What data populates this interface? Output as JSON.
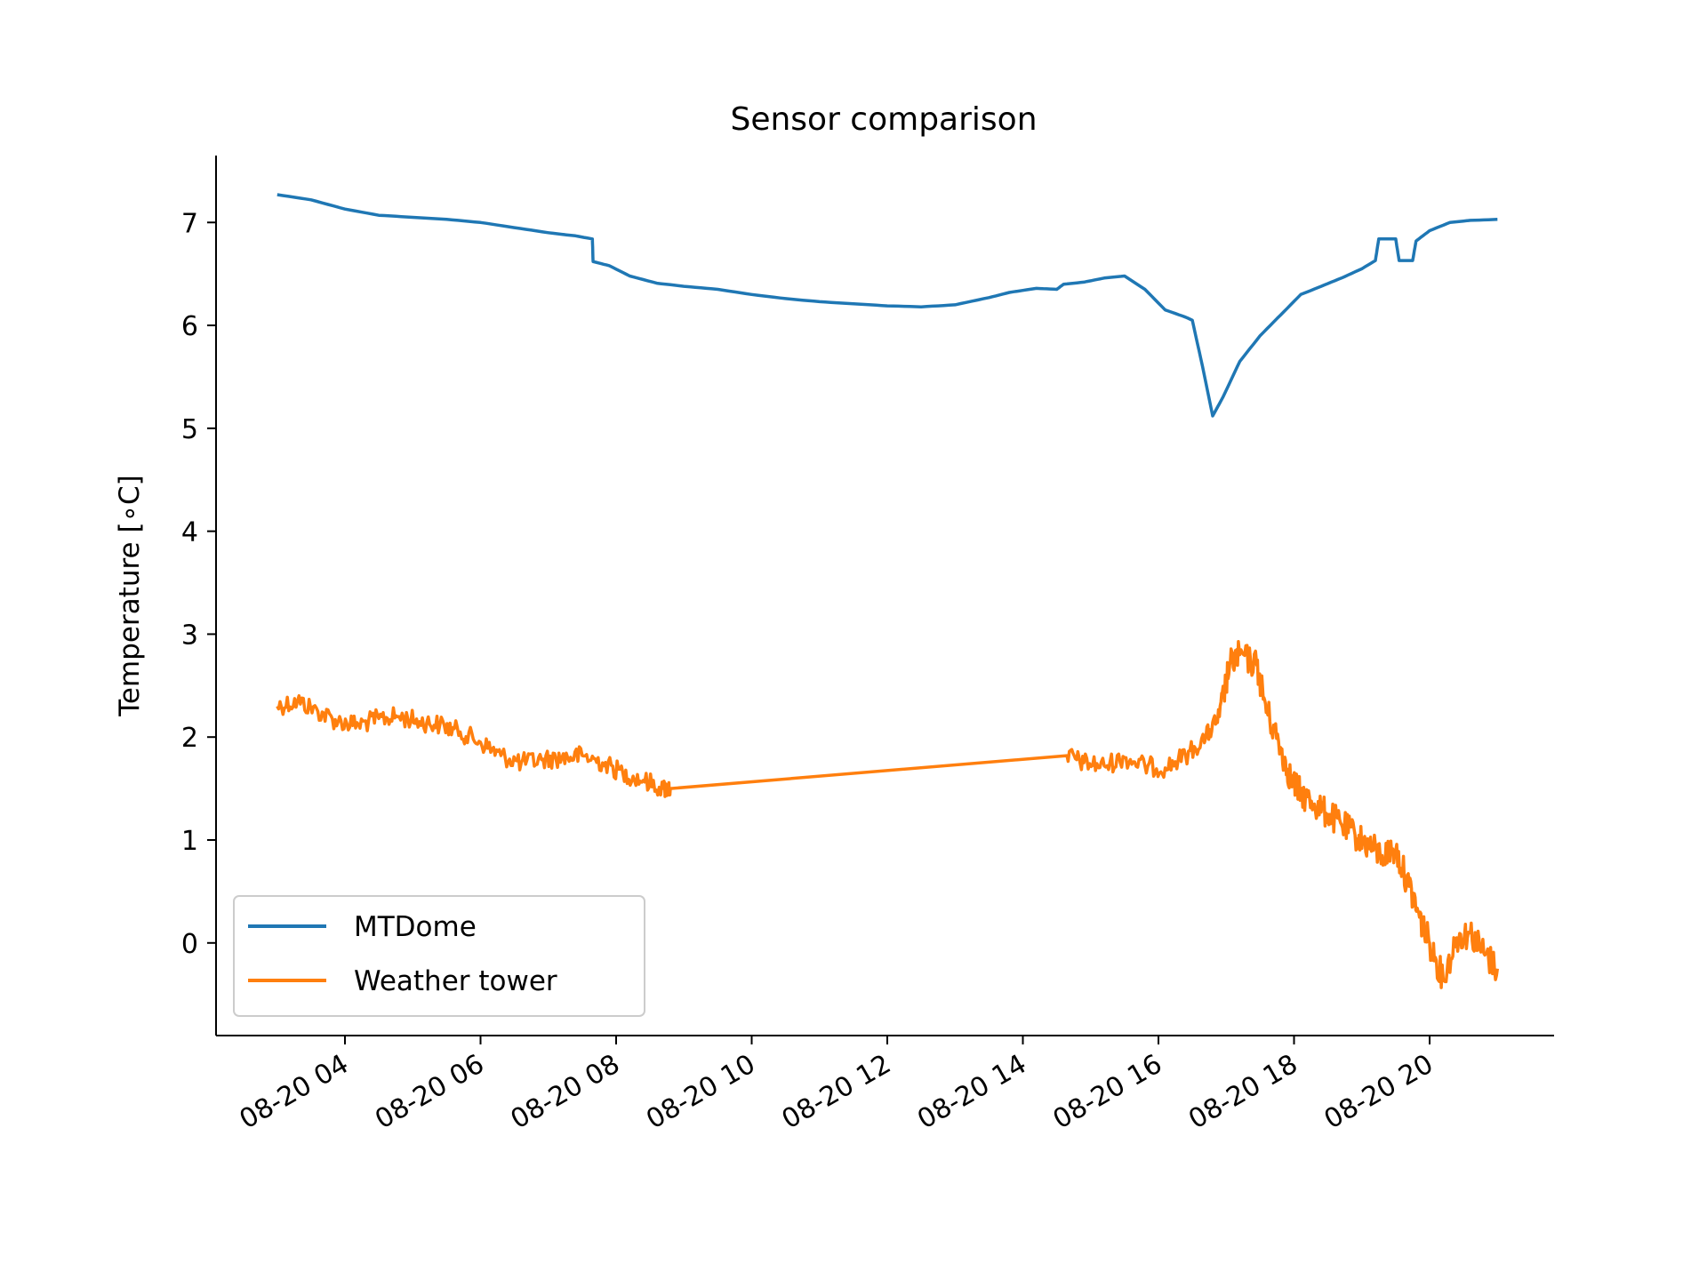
{
  "chart_data": {
    "type": "line",
    "title": "Sensor comparison",
    "xlabel": "",
    "ylabel": "Temperature [∘C]",
    "x_type": "time",
    "x_range": [
      "08-20 02:53",
      "08-20 21:00"
    ],
    "xticks": [
      "08-20 04",
      "08-20 06",
      "08-20 08",
      "08-20 10",
      "08-20 12",
      "08-20 14",
      "08-20 16",
      "08-20 18",
      "08-20 20"
    ],
    "xtick_hours": [
      4,
      6,
      8,
      10,
      12,
      14,
      16,
      18,
      20
    ],
    "ylim": [
      -0.9,
      7.65
    ],
    "yticks": [
      0,
      1,
      2,
      3,
      4,
      5,
      6,
      7
    ],
    "grid": false,
    "legend": "lower-left",
    "series": [
      {
        "name": "MTDome",
        "color": "#1f77b4",
        "x_hours": [
          3.0,
          3.5,
          4.0,
          4.5,
          5.0,
          5.5,
          6.0,
          6.5,
          7.0,
          7.4,
          7.65,
          7.66,
          7.9,
          8.2,
          8.6,
          9.0,
          9.5,
          10.0,
          10.5,
          11.0,
          11.5,
          12.0,
          12.5,
          13.0,
          13.5,
          13.8,
          14.2,
          14.5,
          14.6,
          14.9,
          15.2,
          15.5,
          15.8,
          16.1,
          16.4,
          16.5,
          16.65,
          16.8,
          16.95,
          17.2,
          17.5,
          17.8,
          18.1,
          18.4,
          18.7,
          19.0,
          19.2,
          19.25,
          19.5,
          19.55,
          19.75,
          19.8,
          20.0,
          20.3,
          20.6,
          21.0
        ],
        "values": [
          7.27,
          7.22,
          7.13,
          7.07,
          7.05,
          7.03,
          7.0,
          6.95,
          6.9,
          6.87,
          6.84,
          6.62,
          6.58,
          6.48,
          6.41,
          6.38,
          6.35,
          6.3,
          6.26,
          6.23,
          6.21,
          6.19,
          6.18,
          6.2,
          6.27,
          6.32,
          6.36,
          6.35,
          6.4,
          6.42,
          6.46,
          6.48,
          6.35,
          6.15,
          6.08,
          6.05,
          5.6,
          5.12,
          5.3,
          5.65,
          5.9,
          6.1,
          6.3,
          6.38,
          6.46,
          6.55,
          6.63,
          6.84,
          6.84,
          6.63,
          6.63,
          6.82,
          6.92,
          7.0,
          7.02,
          7.03
        ]
      },
      {
        "name": "Weather tower",
        "color": "#ff7f0e",
        "x_hours": [
          3.0,
          3.3,
          3.6,
          3.9,
          4.2,
          4.5,
          4.8,
          5.1,
          5.4,
          5.7,
          6.0,
          6.3,
          6.6,
          6.9,
          7.2,
          7.5,
          7.8,
          8.1,
          8.4,
          8.7,
          8.8,
          14.65,
          14.9,
          15.2,
          15.5,
          15.8,
          16.1,
          16.4,
          16.7,
          16.9,
          17.05,
          17.2,
          17.45,
          17.6,
          17.8,
          17.95,
          18.1,
          18.3,
          18.5,
          18.7,
          18.9,
          19.1,
          19.3,
          19.5,
          19.7,
          19.85,
          20.0,
          20.2,
          20.4,
          20.6,
          20.8,
          21.0
        ],
        "values": [
          2.3,
          2.35,
          2.25,
          2.15,
          2.12,
          2.18,
          2.2,
          2.15,
          2.12,
          2.05,
          1.95,
          1.82,
          1.75,
          1.78,
          1.8,
          1.82,
          1.75,
          1.65,
          1.58,
          1.5,
          1.5,
          1.82,
          1.75,
          1.72,
          1.8,
          1.72,
          1.7,
          1.82,
          2.0,
          2.2,
          2.7,
          2.8,
          2.7,
          2.25,
          1.9,
          1.6,
          1.45,
          1.35,
          1.25,
          1.15,
          1.05,
          0.95,
          0.85,
          0.9,
          0.55,
          0.25,
          0.0,
          -0.35,
          0.05,
          0.1,
          -0.1,
          -0.25
        ]
      }
    ]
  }
}
